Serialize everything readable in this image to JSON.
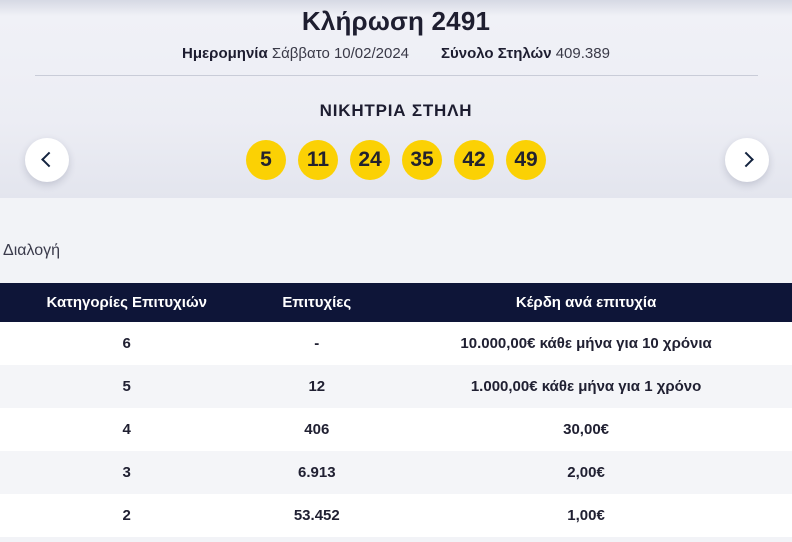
{
  "draw": {
    "title": "Κλήρωση 2491",
    "date_label": "Ημερομηνία",
    "date_value": "Σάββατο 10/02/2024",
    "columns_label": "Σύνολο Στηλών",
    "columns_value": "409.389"
  },
  "winning": {
    "heading": "ΝΙΚΗΤΡΙΑ ΣΤΗΛΗ",
    "numbers": [
      "5",
      "11",
      "24",
      "35",
      "42",
      "49"
    ]
  },
  "selection": {
    "label": "Διαλογή"
  },
  "table": {
    "headers": {
      "category": "Κατηγορίες Επιτυχιών",
      "winners": "Επιτυχίες",
      "prize": "Κέρδη ανά επιτυχία"
    },
    "rows": [
      {
        "category": "6",
        "winners": "-",
        "prize": "10.000,00€ κάθε μήνα για 10 χρόνια"
      },
      {
        "category": "5",
        "winners": "12",
        "prize": "1.000,00€ κάθε μήνα για 1 χρόνο"
      },
      {
        "category": "4",
        "winners": "406",
        "prize": "30,00€"
      },
      {
        "category": "3",
        "winners": "6.913",
        "prize": "2,00€"
      },
      {
        "category": "2",
        "winners": "53.452",
        "prize": "1,00€"
      }
    ]
  },
  "colors": {
    "ball_yellow": "#fbd104",
    "table_header_navy": "#0e1538",
    "page_background": "#f2f3f7",
    "alt_row_gray": "#f4f5f8"
  }
}
